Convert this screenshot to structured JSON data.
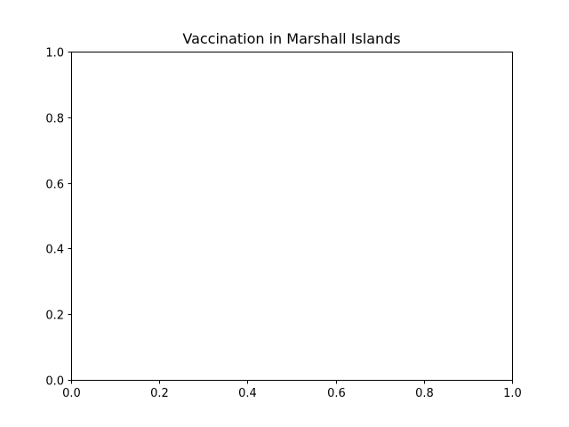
{
  "chart_data": {
    "type": "line",
    "title": "Vaccination in Marshall Islands",
    "xlabel": "",
    "ylabel": "",
    "xlim": [
      0.0,
      1.0
    ],
    "ylim": [
      0.0,
      1.0
    ],
    "grid": false,
    "xticks": [
      "0.0",
      "0.2",
      "0.4",
      "0.6",
      "0.8",
      "1.0"
    ],
    "yticks": [
      "0.0",
      "0.2",
      "0.4",
      "0.6",
      "0.8",
      "1.0"
    ],
    "series": []
  }
}
